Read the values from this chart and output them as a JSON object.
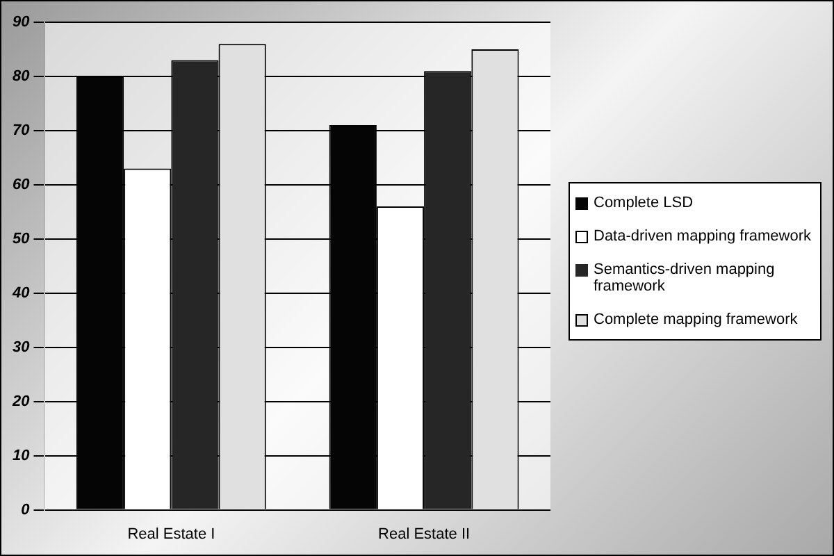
{
  "chart_data": {
    "type": "bar",
    "categories": [
      "Real Estate I",
      "Real Estate II"
    ],
    "series": [
      {
        "name": "Complete LSD",
        "color": "#050505",
        "values": [
          80,
          71
        ]
      },
      {
        "name": "Data-driven mapping framework",
        "color": "#ffffff",
        "values": [
          63,
          56
        ]
      },
      {
        "name": "Semantics-driven mapping framework",
        "color": "#262626",
        "values": [
          83,
          81
        ]
      },
      {
        "name": "Complete mapping framework",
        "color": "#e0e0e0",
        "values": [
          86,
          85
        ]
      }
    ],
    "ylim": [
      0,
      90
    ],
    "yticks": [
      0,
      10,
      20,
      30,
      40,
      50,
      60,
      70,
      80,
      90
    ],
    "grid": "y",
    "legend": "right"
  }
}
